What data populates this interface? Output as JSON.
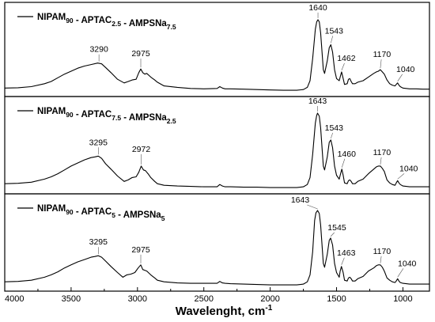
{
  "chart_data": {
    "type": "line",
    "xlabel": "Wavelenght, cm",
    "xlabel_superscript": "-1",
    "xlim": [
      4000,
      800
    ],
    "x_reversed": true,
    "xticks": [
      "4000",
      "3500",
      "3000",
      "2500",
      "2000",
      "1500",
      "1000"
    ],
    "grid": false,
    "panels": [
      {
        "legend": [
          {
            "text": "NIPAM",
            "sub": "90"
          },
          {
            "text": " - APTAC",
            "sub": "2.5"
          },
          {
            "text": " - AMPSNa",
            "sub": "7.5"
          }
        ],
        "series": {
          "x": [
            4000,
            3900,
            3800,
            3700,
            3650,
            3600,
            3550,
            3500,
            3450,
            3400,
            3350,
            3300,
            3270,
            3240,
            3200,
            3150,
            3100,
            3070,
            3040,
            3010,
            2990,
            2975,
            2960,
            2945,
            2930,
            2900,
            2870,
            2850,
            2800,
            2700,
            2600,
            2500,
            2400,
            2380,
            2360,
            2340,
            2300,
            2200,
            2100,
            2000,
            1900,
            1800,
            1750,
            1720,
            1700,
            1680,
            1660,
            1650,
            1640,
            1630,
            1620,
            1600,
            1590,
            1570,
            1555,
            1543,
            1530,
            1515,
            1500,
            1480,
            1470,
            1462,
            1450,
            1440,
            1420,
            1410,
            1400,
            1390,
            1380,
            1360,
            1340,
            1300,
            1260,
            1220,
            1200,
            1185,
            1170,
            1155,
            1140,
            1120,
            1100,
            1080,
            1060,
            1050,
            1040,
            1030,
            1020,
            1000,
            950,
            900,
            850,
            800
          ],
          "y": [
            0.05,
            0.055,
            0.07,
            0.11,
            0.14,
            0.19,
            0.24,
            0.28,
            0.32,
            0.35,
            0.37,
            0.39,
            0.38,
            0.33,
            0.26,
            0.17,
            0.12,
            0.14,
            0.16,
            0.17,
            0.26,
            0.31,
            0.26,
            0.24,
            0.25,
            0.2,
            0.16,
            0.13,
            0.08,
            0.06,
            0.045,
            0.04,
            0.045,
            0.07,
            0.05,
            0.04,
            0.04,
            0.035,
            0.03,
            0.025,
            0.02,
            0.02,
            0.03,
            0.06,
            0.15,
            0.45,
            0.85,
            0.95,
            0.98,
            0.95,
            0.8,
            0.3,
            0.25,
            0.42,
            0.6,
            0.64,
            0.54,
            0.3,
            0.18,
            0.15,
            0.22,
            0.27,
            0.18,
            0.1,
            0.11,
            0.17,
            0.18,
            0.14,
            0.11,
            0.11,
            0.13,
            0.15,
            0.2,
            0.25,
            0.27,
            0.28,
            0.3,
            0.27,
            0.24,
            0.16,
            0.11,
            0.09,
            0.08,
            0.1,
            0.12,
            0.09,
            0.07,
            0.05,
            0.04,
            0.04,
            0.035,
            0.035
          ]
        },
        "peaks": [
          {
            "label": "3290",
            "x": 3290
          },
          {
            "label": "2975",
            "x": 2975
          },
          {
            "label": "1640",
            "x": 1640
          },
          {
            "label": "1543",
            "x": 1543
          },
          {
            "label": "1462",
            "x": 1462
          },
          {
            "label": "1170",
            "x": 1170
          },
          {
            "label": "1040",
            "x": 1040
          }
        ]
      },
      {
        "legend": [
          {
            "text": "NIPAM",
            "sub": "90"
          },
          {
            "text": " - APTAC",
            "sub": "7.5"
          },
          {
            "text": " - AMPSNa",
            "sub": "2.5"
          }
        ],
        "series": {
          "x": [
            4000,
            3900,
            3800,
            3700,
            3650,
            3600,
            3550,
            3500,
            3450,
            3400,
            3350,
            3320,
            3295,
            3270,
            3240,
            3200,
            3150,
            3100,
            3070,
            3040,
            3010,
            2990,
            2972,
            2955,
            2940,
            2920,
            2900,
            2870,
            2850,
            2800,
            2700,
            2600,
            2500,
            2400,
            2380,
            2360,
            2340,
            2300,
            2200,
            2100,
            2000,
            1900,
            1800,
            1750,
            1720,
            1700,
            1680,
            1660,
            1650,
            1643,
            1630,
            1620,
            1600,
            1590,
            1570,
            1555,
            1543,
            1530,
            1515,
            1500,
            1480,
            1470,
            1460,
            1450,
            1440,
            1420,
            1410,
            1400,
            1390,
            1380,
            1360,
            1340,
            1300,
            1260,
            1220,
            1200,
            1185,
            1170,
            1155,
            1140,
            1120,
            1100,
            1080,
            1060,
            1050,
            1040,
            1030,
            1020,
            1000,
            950,
            900,
            850,
            800
          ],
          "y": [
            0.07,
            0.075,
            0.09,
            0.13,
            0.16,
            0.2,
            0.25,
            0.3,
            0.34,
            0.38,
            0.41,
            0.42,
            0.43,
            0.4,
            0.33,
            0.26,
            0.17,
            0.1,
            0.12,
            0.15,
            0.16,
            0.22,
            0.3,
            0.25,
            0.24,
            0.2,
            0.15,
            0.1,
            0.07,
            0.05,
            0.04,
            0.035,
            0.03,
            0.03,
            0.06,
            0.04,
            0.03,
            0.03,
            0.025,
            0.025,
            0.02,
            0.02,
            0.02,
            0.03,
            0.06,
            0.15,
            0.45,
            0.86,
            0.96,
            0.99,
            0.95,
            0.8,
            0.3,
            0.25,
            0.42,
            0.61,
            0.64,
            0.54,
            0.3,
            0.18,
            0.13,
            0.2,
            0.26,
            0.18,
            0.08,
            0.07,
            0.11,
            0.12,
            0.1,
            0.07,
            0.07,
            0.1,
            0.13,
            0.2,
            0.26,
            0.29,
            0.3,
            0.3,
            0.27,
            0.23,
            0.12,
            0.08,
            0.06,
            0.05,
            0.08,
            0.11,
            0.08,
            0.06,
            0.04,
            0.03,
            0.03,
            0.03,
            0.03
          ]
        },
        "peaks": [
          {
            "label": "3295",
            "x": 3295
          },
          {
            "label": "2972",
            "x": 2972
          },
          {
            "label": "1643",
            "x": 1643
          },
          {
            "label": "1543",
            "x": 1543
          },
          {
            "label": "1460",
            "x": 1460
          },
          {
            "label": "1170",
            "x": 1170
          },
          {
            "label": "1040",
            "x": 1040
          }
        ]
      },
      {
        "legend": [
          {
            "text": "NIPAM",
            "sub": "90"
          },
          {
            "text": " - APTAC",
            "sub": "5"
          },
          {
            "text": " - AMPSNa",
            "sub": "5"
          }
        ],
        "series": {
          "x": [
            4000,
            3900,
            3800,
            3700,
            3650,
            3600,
            3550,
            3500,
            3450,
            3400,
            3350,
            3320,
            3295,
            3270,
            3240,
            3200,
            3150,
            3110,
            3080,
            3050,
            3020,
            2995,
            2975,
            2960,
            2945,
            2930,
            2900,
            2870,
            2850,
            2800,
            2700,
            2600,
            2500,
            2400,
            2380,
            2360,
            2340,
            2300,
            2200,
            2100,
            2000,
            1900,
            1800,
            1750,
            1720,
            1700,
            1680,
            1665,
            1655,
            1643,
            1630,
            1620,
            1600,
            1590,
            1570,
            1555,
            1545,
            1530,
            1515,
            1500,
            1480,
            1473,
            1463,
            1450,
            1440,
            1420,
            1410,
            1400,
            1390,
            1380,
            1360,
            1340,
            1300,
            1260,
            1220,
            1200,
            1185,
            1170,
            1155,
            1140,
            1120,
            1100,
            1080,
            1060,
            1050,
            1040,
            1030,
            1020,
            1000,
            950,
            900,
            850,
            800
          ],
          "y": [
            0.06,
            0.065,
            0.08,
            0.12,
            0.15,
            0.19,
            0.24,
            0.28,
            0.32,
            0.35,
            0.38,
            0.39,
            0.4,
            0.38,
            0.33,
            0.26,
            0.18,
            0.12,
            0.15,
            0.16,
            0.18,
            0.24,
            0.28,
            0.22,
            0.21,
            0.2,
            0.15,
            0.11,
            0.08,
            0.06,
            0.045,
            0.04,
            0.04,
            0.04,
            0.065,
            0.045,
            0.04,
            0.035,
            0.03,
            0.025,
            0.02,
            0.02,
            0.02,
            0.03,
            0.06,
            0.15,
            0.45,
            0.86,
            0.96,
            0.99,
            0.95,
            0.8,
            0.3,
            0.25,
            0.42,
            0.6,
            0.63,
            0.54,
            0.3,
            0.18,
            0.12,
            0.2,
            0.26,
            0.18,
            0.08,
            0.07,
            0.11,
            0.12,
            0.1,
            0.07,
            0.07,
            0.1,
            0.13,
            0.2,
            0.24,
            0.27,
            0.28,
            0.28,
            0.25,
            0.2,
            0.11,
            0.08,
            0.06,
            0.05,
            0.07,
            0.1,
            0.07,
            0.05,
            0.04,
            0.03,
            0.03,
            0.03,
            0.03
          ]
        },
        "peaks": [
          {
            "label": "3295",
            "x": 3295
          },
          {
            "label": "2975",
            "x": 2975
          },
          {
            "label": "1643",
            "x": 1643
          },
          {
            "label": "1545",
            "x": 1545
          },
          {
            "label": "1463",
            "x": 1463
          },
          {
            "label": "1170",
            "x": 1170
          },
          {
            "label": "1040",
            "x": 1040
          }
        ]
      }
    ]
  }
}
